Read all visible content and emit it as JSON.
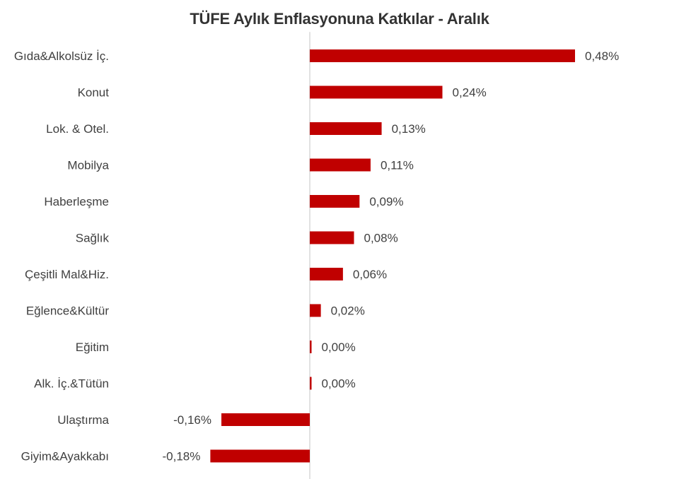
{
  "chart_data": {
    "type": "bar",
    "orientation": "horizontal",
    "title": "TÜFE Aylık Enflasyonuna Katkılar - Aralık",
    "categories": [
      "Gıda&Alkolsüz İç.",
      "Konut",
      "Lok. & Otel.",
      "Mobilya",
      "Haberleşme",
      "Sağlık",
      "Çeşitli Mal&Hiz.",
      "Eğlence&Kültür",
      "Eğitim",
      "Alk. İç.&Tütün",
      "Ulaştırma",
      "Giyim&Ayakkabı"
    ],
    "values": [
      0.48,
      0.24,
      0.13,
      0.11,
      0.09,
      0.08,
      0.06,
      0.02,
      0.0,
      0.0,
      -0.16,
      -0.18
    ],
    "labels": [
      "0,48%",
      "0,24%",
      "0,13%",
      "0,11%",
      "0,09%",
      "0,08%",
      "0,06%",
      "0,02%",
      "0,00%",
      "0,00%",
      "-0,16%",
      "-0,18%"
    ],
    "unit": "%",
    "xlim": [
      -0.18,
      0.48
    ],
    "grid": false,
    "legend": "none",
    "colors": {
      "bar": "#c00000",
      "axis": "#d9d9d9",
      "text": "#404040",
      "title": "#333333"
    }
  }
}
